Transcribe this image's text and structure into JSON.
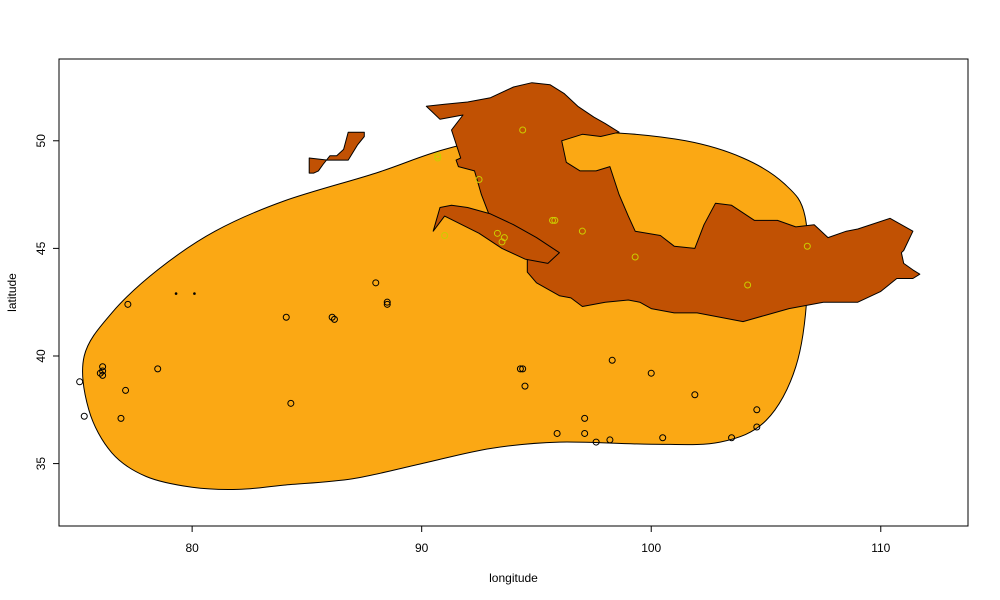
{
  "chart_data": {
    "type": "scatter",
    "title": "",
    "xlabel": "longitude",
    "ylabel": "latitude",
    "xlim": [
      74.2,
      113.8
    ],
    "ylim": [
      32.1,
      53.8
    ],
    "xticks": [
      80,
      90,
      100,
      110
    ],
    "yticks": [
      35,
      40,
      45,
      50
    ],
    "grid": false,
    "colors": {
      "fill_region": "#FBA814",
      "overlay_region": "#C15103",
      "open_points": "#000000",
      "overlay_points": "#CCCC00",
      "dot_points": "#000000"
    },
    "regions": [
      {
        "id": "smoothed-region",
        "fill": "#FBA814",
        "outline": [
          [
            75.3,
            40.0
          ],
          [
            75.5,
            37.5
          ],
          [
            76.5,
            35.5
          ],
          [
            78.0,
            34.4
          ],
          [
            80.0,
            33.9
          ],
          [
            82.0,
            33.8
          ],
          [
            84.0,
            34.0
          ],
          [
            87.0,
            34.3
          ],
          [
            90.0,
            35.0
          ],
          [
            93.0,
            35.7
          ],
          [
            96.0,
            36.0
          ],
          [
            100.0,
            35.9
          ],
          [
            103.0,
            36.0
          ],
          [
            105.0,
            37.0
          ],
          [
            106.3,
            39.5
          ],
          [
            106.8,
            43.0
          ],
          [
            106.7,
            46.5
          ],
          [
            105.8,
            48.0
          ],
          [
            104.0,
            49.2
          ],
          [
            101.5,
            50.0
          ],
          [
            98.0,
            50.4
          ],
          [
            94.5,
            50.4
          ],
          [
            91.0,
            49.6
          ],
          [
            88.0,
            48.5
          ],
          [
            84.0,
            47.2
          ],
          [
            81.0,
            45.8
          ],
          [
            78.5,
            44.0
          ],
          [
            76.5,
            42.0
          ]
        ]
      },
      {
        "id": "overlay-main",
        "fill": "#C15103",
        "outline": [
          [
            90.2,
            51.6
          ],
          [
            91.0,
            51.7
          ],
          [
            92.0,
            51.8
          ],
          [
            93.0,
            52.0
          ],
          [
            94.0,
            52.5
          ],
          [
            94.8,
            52.7
          ],
          [
            95.6,
            52.6
          ],
          [
            96.2,
            52.2
          ],
          [
            96.8,
            51.6
          ],
          [
            97.5,
            51.1
          ],
          [
            98.0,
            50.8
          ],
          [
            98.6,
            50.4
          ],
          [
            97.8,
            50.2
          ],
          [
            97.0,
            50.3
          ],
          [
            96.1,
            50.0
          ],
          [
            96.3,
            49.0
          ],
          [
            96.9,
            48.6
          ],
          [
            97.6,
            48.6
          ],
          [
            98.2,
            48.8
          ],
          [
            98.6,
            47.5
          ],
          [
            99.0,
            46.5
          ],
          [
            99.3,
            45.8
          ],
          [
            100.4,
            45.6
          ],
          [
            101.0,
            45.1
          ],
          [
            101.9,
            45.0
          ],
          [
            102.3,
            46.1
          ],
          [
            102.8,
            47.1
          ],
          [
            103.5,
            47.0
          ],
          [
            104.5,
            46.3
          ],
          [
            105.5,
            46.3
          ],
          [
            106.3,
            46.0
          ],
          [
            107.1,
            46.1
          ],
          [
            107.3,
            45.9
          ],
          [
            107.7,
            45.5
          ],
          [
            108.5,
            45.8
          ],
          [
            109.0,
            45.9
          ],
          [
            110.4,
            46.4
          ],
          [
            111.4,
            45.8
          ],
          [
            111.0,
            44.9
          ],
          [
            110.9,
            44.8
          ],
          [
            111.0,
            44.3
          ],
          [
            111.4,
            44.0
          ],
          [
            111.7,
            43.8
          ],
          [
            111.4,
            43.6
          ],
          [
            110.7,
            43.6
          ],
          [
            110.0,
            43.0
          ],
          [
            109.0,
            42.5
          ],
          [
            107.5,
            42.5
          ],
          [
            106.0,
            42.2
          ],
          [
            105.0,
            41.9
          ],
          [
            104.0,
            41.6
          ],
          [
            103.0,
            41.8
          ],
          [
            102.0,
            42.0
          ],
          [
            101.0,
            42.0
          ],
          [
            100.0,
            42.2
          ],
          [
            99.5,
            42.5
          ],
          [
            99.0,
            42.6
          ],
          [
            98.0,
            42.5
          ],
          [
            97.0,
            42.3
          ],
          [
            96.5,
            42.7
          ],
          [
            96.0,
            42.8
          ],
          [
            95.0,
            43.4
          ],
          [
            94.6,
            43.9
          ],
          [
            94.6,
            44.5
          ],
          [
            94.2,
            44.9
          ],
          [
            94.6,
            45.2
          ],
          [
            94.3,
            45.7
          ],
          [
            93.6,
            46.2
          ],
          [
            93.0,
            46.4
          ],
          [
            92.6,
            47.5
          ],
          [
            92.3,
            48.6
          ],
          [
            91.6,
            48.8
          ],
          [
            91.5,
            49.1
          ],
          [
            91.7,
            49.2
          ],
          [
            91.3,
            50.5
          ],
          [
            91.8,
            51.2
          ],
          [
            90.8,
            51.0
          ],
          [
            90.4,
            51.4
          ]
        ]
      },
      {
        "id": "overlay-strip",
        "fill": "#C15103",
        "outline": [
          [
            91.0,
            46.5
          ],
          [
            92.5,
            45.7
          ],
          [
            93.5,
            45.0
          ],
          [
            94.5,
            44.5
          ],
          [
            95.5,
            44.3
          ],
          [
            96.0,
            44.8
          ],
          [
            95.0,
            45.5
          ],
          [
            94.0,
            46.1
          ],
          [
            93.0,
            46.6
          ],
          [
            92.0,
            46.9
          ],
          [
            91.3,
            47.0
          ],
          [
            90.8,
            46.9
          ],
          [
            90.5,
            45.8
          ]
        ]
      },
      {
        "id": "overlay-island",
        "fill": "#C15103",
        "outline": [
          [
            85.1,
            49.2
          ],
          [
            85.9,
            49.1
          ],
          [
            86.8,
            49.1
          ],
          [
            87.2,
            49.8
          ],
          [
            87.5,
            50.2
          ],
          [
            87.5,
            50.4
          ],
          [
            86.8,
            50.4
          ],
          [
            86.6,
            49.6
          ],
          [
            86.3,
            49.3
          ],
          [
            86.0,
            49.3
          ],
          [
            85.7,
            48.9
          ],
          [
            85.5,
            48.6
          ],
          [
            85.3,
            48.5
          ],
          [
            85.1,
            48.5
          ]
        ]
      }
    ],
    "series": [
      {
        "marker": "open-circle",
        "color": "#000000",
        "x": [
          75.1,
          75.3,
          76.1,
          76.1,
          76.0,
          76.1,
          76.9,
          77.1,
          77.2,
          78.5,
          84.1,
          84.3,
          86.1,
          86.2,
          88.0,
          88.5,
          88.5,
          94.3,
          94.4,
          94.5,
          95.9,
          97.1,
          97.1,
          97.6,
          98.2,
          98.3,
          100.0,
          100.5,
          101.9,
          103.5,
          104.6,
          104.6
        ],
        "y": [
          38.8,
          37.2,
          39.3,
          39.5,
          39.2,
          39.1,
          37.1,
          38.4,
          42.4,
          39.4,
          41.8,
          37.8,
          41.8,
          41.7,
          43.4,
          42.4,
          42.5,
          39.4,
          39.4,
          38.6,
          36.4,
          37.1,
          36.4,
          36.0,
          36.1,
          39.8,
          39.2,
          36.2,
          38.2,
          36.2,
          37.5,
          36.7
        ]
      },
      {
        "marker": "open-circle",
        "color": "#CCCC00",
        "x": [
          90.7,
          90.7,
          91.0,
          92.5,
          93.3,
          93.6,
          93.5,
          94.4,
          95.7,
          95.8,
          97.0,
          99.3,
          104.2,
          106.8
        ],
        "y": [
          49.3,
          49.2,
          45.6,
          48.2,
          45.7,
          45.5,
          45.3,
          50.5,
          46.3,
          46.3,
          45.8,
          44.6,
          43.3,
          45.1
        ]
      },
      {
        "marker": "dot",
        "color": "#000000",
        "x": [
          79.3,
          80.1
        ],
        "y": [
          42.9,
          42.9
        ]
      }
    ]
  }
}
